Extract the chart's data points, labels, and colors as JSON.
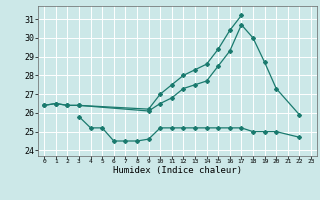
{
  "series1_x": [
    0,
    1,
    2,
    3,
    9,
    10,
    11,
    12,
    13,
    14,
    15,
    16,
    17,
    18,
    19,
    20,
    22
  ],
  "series1_y": [
    26.4,
    26.5,
    26.4,
    26.4,
    26.1,
    26.5,
    26.8,
    27.3,
    27.5,
    27.7,
    28.5,
    29.3,
    30.7,
    30.0,
    28.7,
    27.3,
    25.9
  ],
  "series2_x": [
    0,
    1,
    2,
    3,
    9,
    10,
    11,
    12,
    13,
    14,
    15,
    16,
    17
  ],
  "series2_y": [
    26.4,
    26.5,
    26.4,
    26.4,
    26.2,
    27.0,
    27.5,
    28.0,
    28.3,
    28.6,
    29.4,
    30.4,
    31.2
  ],
  "series3_x": [
    3,
    4,
    5,
    6,
    7,
    8,
    9,
    10,
    11,
    12,
    13,
    14,
    15,
    16,
    17,
    18,
    19,
    20,
    22
  ],
  "series3_y": [
    25.8,
    25.2,
    25.2,
    24.5,
    24.5,
    24.5,
    24.6,
    25.2,
    25.2,
    25.2,
    25.2,
    25.2,
    25.2,
    25.2,
    25.2,
    25.0,
    25.0,
    25.0,
    24.7
  ],
  "color": "#1a7a6e",
  "bg_color": "#cce8e8",
  "grid_color": "#ffffff",
  "xlabel": "Humidex (Indice chaleur)",
  "ylabel_ticks": [
    24,
    25,
    26,
    27,
    28,
    29,
    30,
    31
  ],
  "xlim": [
    -0.5,
    23.5
  ],
  "ylim": [
    23.7,
    31.7
  ],
  "xticks": [
    0,
    1,
    2,
    3,
    4,
    5,
    6,
    7,
    8,
    9,
    10,
    11,
    12,
    13,
    14,
    15,
    16,
    17,
    18,
    19,
    20,
    21,
    22,
    23
  ],
  "xtick_labels": [
    "0",
    "1",
    "2",
    "3",
    "4",
    "5",
    "6",
    "7",
    "8",
    "9",
    "10",
    "11",
    "12",
    "13",
    "14",
    "15",
    "16",
    "17",
    "18",
    "19",
    "20",
    "21",
    "22",
    "23"
  ]
}
